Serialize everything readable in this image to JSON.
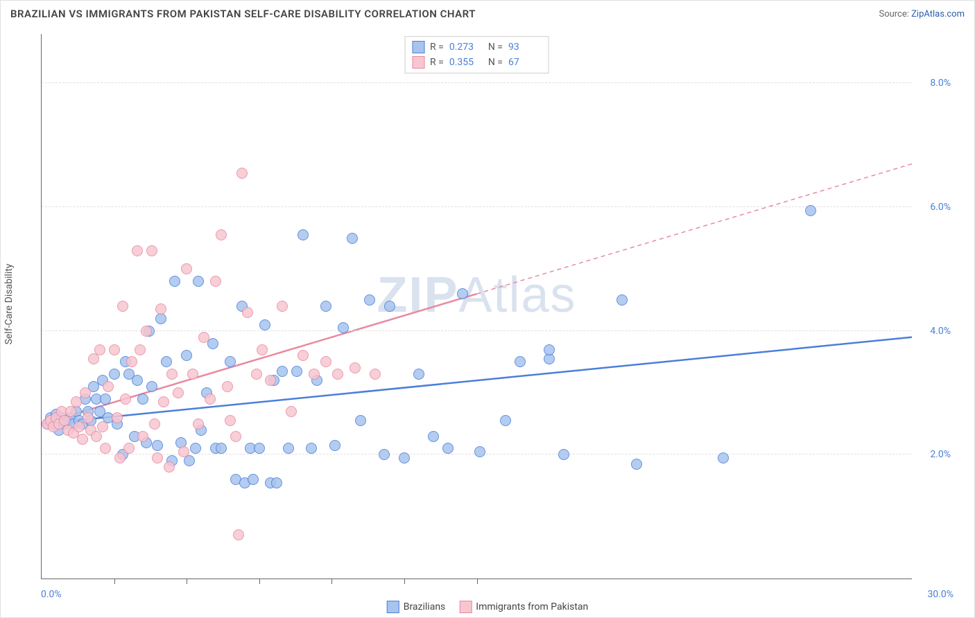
{
  "title": "BRAZILIAN VS IMMIGRANTS FROM PAKISTAN SELF-CARE DISABILITY CORRELATION CHART",
  "source_prefix": "Source: ",
  "source_name": "ZipAtlas.com",
  "ylabel": "Self-Care Disability",
  "watermark_bold": "ZIP",
  "watermark_rest": "Atlas",
  "chart": {
    "type": "scatter",
    "xlim": [
      0,
      30
    ],
    "ylim": [
      0,
      8.8
    ],
    "x_axis_origin_label": "0.0%",
    "x_axis_max_label": "30.0%",
    "x_minor_ticks": [
      2.5,
      5,
      7.5,
      10,
      12.5,
      15
    ],
    "y_gridlines": [
      2,
      4,
      6,
      8
    ],
    "y_tick_labels": [
      "2.0%",
      "4.0%",
      "6.0%",
      "8.0%"
    ],
    "grid_color": "#e0e0e0",
    "axis_color": "#666666",
    "background_color": "#ffffff",
    "point_radius": 8,
    "point_stroke_width": 1.2,
    "point_fill_opacity": 0.25,
    "series": [
      {
        "name": "Brazilians",
        "color_stroke": "#4a7fd8",
        "color_fill": "#a8c4ee",
        "R": "0.273",
        "N": "93",
        "trend": {
          "x0": 0,
          "y0": 2.5,
          "x1": 30,
          "y1": 3.9,
          "width": 2.5,
          "dash": null
        },
        "points": [
          [
            0.2,
            2.5
          ],
          [
            0.3,
            2.6
          ],
          [
            0.4,
            2.5
          ],
          [
            0.5,
            2.55
          ],
          [
            0.5,
            2.65
          ],
          [
            0.6,
            2.4
          ],
          [
            0.7,
            2.6
          ],
          [
            0.8,
            2.5
          ],
          [
            0.9,
            2.55
          ],
          [
            1.0,
            2.6
          ],
          [
            1.1,
            2.5
          ],
          [
            1.2,
            2.7
          ],
          [
            1.3,
            2.55
          ],
          [
            1.4,
            2.5
          ],
          [
            1.5,
            2.9
          ],
          [
            1.6,
            2.7
          ],
          [
            1.7,
            2.55
          ],
          [
            1.8,
            3.1
          ],
          [
            1.9,
            2.9
          ],
          [
            2.0,
            2.7
          ],
          [
            2.1,
            3.2
          ],
          [
            2.2,
            2.9
          ],
          [
            2.3,
            2.6
          ],
          [
            2.5,
            3.3
          ],
          [
            2.6,
            2.5
          ],
          [
            2.8,
            2.0
          ],
          [
            2.9,
            3.5
          ],
          [
            3.0,
            3.3
          ],
          [
            3.2,
            2.3
          ],
          [
            3.3,
            3.2
          ],
          [
            3.5,
            2.9
          ],
          [
            3.6,
            2.2
          ],
          [
            3.7,
            4.0
          ],
          [
            3.8,
            3.1
          ],
          [
            4.0,
            2.15
          ],
          [
            4.1,
            4.2
          ],
          [
            4.3,
            3.5
          ],
          [
            4.5,
            1.9
          ],
          [
            4.6,
            4.8
          ],
          [
            4.8,
            2.2
          ],
          [
            5.0,
            3.6
          ],
          [
            5.1,
            1.9
          ],
          [
            5.3,
            2.1
          ],
          [
            5.4,
            4.8
          ],
          [
            5.5,
            2.4
          ],
          [
            5.7,
            3.0
          ],
          [
            5.9,
            3.8
          ],
          [
            6.0,
            2.1
          ],
          [
            6.2,
            2.1
          ],
          [
            6.5,
            3.5
          ],
          [
            6.7,
            1.6
          ],
          [
            6.9,
            4.4
          ],
          [
            7.0,
            1.55
          ],
          [
            7.2,
            2.1
          ],
          [
            7.3,
            1.6
          ],
          [
            7.5,
            2.1
          ],
          [
            7.7,
            4.1
          ],
          [
            7.9,
            1.55
          ],
          [
            8.0,
            3.2
          ],
          [
            8.1,
            1.55
          ],
          [
            8.3,
            3.35
          ],
          [
            8.5,
            2.1
          ],
          [
            8.8,
            3.35
          ],
          [
            9.0,
            5.55
          ],
          [
            9.3,
            2.1
          ],
          [
            9.5,
            3.2
          ],
          [
            9.8,
            4.4
          ],
          [
            10.1,
            2.15
          ],
          [
            10.4,
            4.05
          ],
          [
            10.7,
            5.5
          ],
          [
            11.0,
            2.55
          ],
          [
            11.3,
            4.5
          ],
          [
            11.8,
            2.0
          ],
          [
            12.0,
            4.4
          ],
          [
            12.5,
            1.95
          ],
          [
            13.0,
            3.3
          ],
          [
            13.5,
            2.3
          ],
          [
            14.0,
            2.1
          ],
          [
            14.5,
            4.6
          ],
          [
            15.1,
            2.05
          ],
          [
            16.0,
            2.55
          ],
          [
            16.5,
            3.5
          ],
          [
            17.5,
            3.55
          ],
          [
            17.5,
            3.7
          ],
          [
            18.0,
            2.0
          ],
          [
            20.0,
            4.5
          ],
          [
            20.5,
            1.85
          ],
          [
            23.5,
            1.95
          ],
          [
            26.5,
            5.95
          ]
        ]
      },
      {
        "name": "Immigrants from Pakistan",
        "color_stroke": "#e8899f",
        "color_fill": "#f7c6d1",
        "R": "0.355",
        "N": "67",
        "trend_solid": {
          "x0": 0,
          "y0": 2.5,
          "x1": 15,
          "y1": 4.6,
          "width": 2.5
        },
        "trend_dash": {
          "x0": 15,
          "y0": 4.6,
          "x1": 30,
          "y1": 6.7,
          "dash": "6 5",
          "width": 1.5
        },
        "points": [
          [
            0.2,
            2.5
          ],
          [
            0.3,
            2.55
          ],
          [
            0.4,
            2.45
          ],
          [
            0.5,
            2.6
          ],
          [
            0.6,
            2.5
          ],
          [
            0.7,
            2.7
          ],
          [
            0.8,
            2.55
          ],
          [
            0.9,
            2.4
          ],
          [
            1.0,
            2.7
          ],
          [
            1.1,
            2.35
          ],
          [
            1.2,
            2.85
          ],
          [
            1.3,
            2.45
          ],
          [
            1.4,
            2.25
          ],
          [
            1.5,
            3.0
          ],
          [
            1.6,
            2.6
          ],
          [
            1.7,
            2.4
          ],
          [
            1.8,
            3.55
          ],
          [
            1.9,
            2.3
          ],
          [
            2.0,
            3.7
          ],
          [
            2.1,
            2.45
          ],
          [
            2.2,
            2.1
          ],
          [
            2.3,
            3.1
          ],
          [
            2.5,
            3.7
          ],
          [
            2.6,
            2.6
          ],
          [
            2.7,
            1.95
          ],
          [
            2.8,
            4.4
          ],
          [
            2.9,
            2.9
          ],
          [
            3.0,
            2.1
          ],
          [
            3.1,
            3.5
          ],
          [
            3.3,
            5.3
          ],
          [
            3.4,
            3.7
          ],
          [
            3.5,
            2.3
          ],
          [
            3.6,
            4.0
          ],
          [
            3.8,
            5.3
          ],
          [
            3.9,
            2.5
          ],
          [
            4.0,
            1.95
          ],
          [
            4.1,
            4.35
          ],
          [
            4.2,
            2.85
          ],
          [
            4.4,
            1.8
          ],
          [
            4.5,
            3.3
          ],
          [
            4.7,
            3.0
          ],
          [
            4.9,
            2.05
          ],
          [
            5.0,
            5.0
          ],
          [
            5.2,
            3.3
          ],
          [
            5.4,
            2.5
          ],
          [
            5.6,
            3.9
          ],
          [
            5.8,
            2.9
          ],
          [
            6.0,
            4.8
          ],
          [
            6.2,
            5.55
          ],
          [
            6.4,
            3.1
          ],
          [
            6.5,
            2.55
          ],
          [
            6.7,
            2.3
          ],
          [
            6.8,
            0.7
          ],
          [
            6.9,
            6.55
          ],
          [
            7.1,
            4.3
          ],
          [
            7.4,
            3.3
          ],
          [
            7.6,
            3.7
          ],
          [
            7.9,
            3.2
          ],
          [
            8.3,
            4.4
          ],
          [
            8.6,
            2.7
          ],
          [
            9.0,
            3.6
          ],
          [
            9.4,
            3.3
          ],
          [
            9.8,
            3.5
          ],
          [
            10.2,
            3.3
          ],
          [
            10.8,
            3.4
          ],
          [
            11.5,
            3.3
          ]
        ]
      }
    ]
  },
  "legend_top": {
    "R_label": "R =",
    "N_label": "N ="
  },
  "legend_bottom_labels": [
    "Brazilians",
    "Immigrants from Pakistan"
  ]
}
